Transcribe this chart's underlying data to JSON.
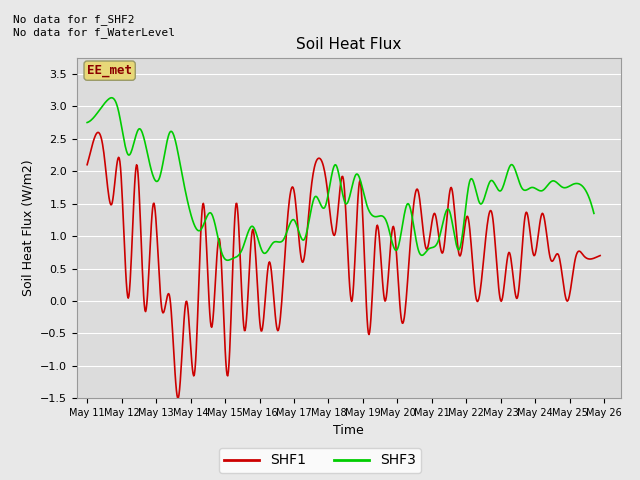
{
  "title": "Soil Heat Flux",
  "xlabel": "Time",
  "ylabel": "Soil Heat Flux (W/m2)",
  "ylim": [
    -1.5,
    3.75
  ],
  "yticks": [
    -1.5,
    -1.0,
    -0.5,
    0.0,
    0.5,
    1.0,
    1.5,
    2.0,
    2.5,
    3.0,
    3.5
  ],
  "bg_color": "#dcdcdc",
  "fig_color": "#e8e8e8",
  "grid_color": "white",
  "text_top_left": "No data for f_SHF2\nNo data for f_WaterLevel",
  "annotation_box": "EE_met",
  "annotation_box_color": "#e8d878",
  "annotation_text_color": "#8b0000",
  "shf1_color": "#cc0000",
  "shf3_color": "#00cc00",
  "line_width": 1.2,
  "xtick_labels": [
    "May 11",
    "May 12",
    "May 13",
    "May 14",
    "May 15",
    "May 16",
    "May 17",
    "May 18",
    "May 19",
    "May 20",
    "May 21",
    "May 22",
    "May 23",
    "May 24",
    "May 25",
    "May 26"
  ],
  "shf1_x": [
    0,
    0.4,
    0.8,
    1.2,
    1.6,
    2.0,
    2.4,
    2.8,
    3.2,
    3.6,
    4.0,
    4.4,
    4.8,
    5.2,
    5.6,
    6.0,
    6.4,
    6.8,
    7.2,
    7.6,
    8.0,
    8.4,
    8.8,
    9.2,
    9.6,
    10.0,
    10.4,
    10.8,
    11.2,
    11.6,
    12.0,
    12.4,
    12.8,
    13.2,
    13.6,
    14.0,
    14.4,
    14.8,
    15.2,
    15.6,
    16.0,
    16.4,
    16.8,
    17.2,
    17.6,
    18.0,
    18.4,
    18.8,
    19.2,
    19.6,
    20.0,
    20.4,
    20.8,
    21.2,
    21.6,
    22.0,
    22.4,
    22.8,
    23.2,
    23.6,
    24.0,
    24.4,
    24.8
  ],
  "shf1_y": [
    2.1,
    2.55,
    2.3,
    1.5,
    2.1,
    0.05,
    2.1,
    -0.15,
    1.5,
    -0.1,
    0.05,
    -1.5,
    0.0,
    -1.1,
    1.5,
    -0.4,
    0.95,
    -1.15,
    1.5,
    -0.45,
    1.1,
    -0.45,
    0.6,
    -0.45,
    0.9,
    1.7,
    0.6,
    1.65,
    2.2,
    1.75,
    1.05,
    1.85,
    0.0,
    1.85,
    -0.5,
    1.15,
    0.0,
    1.15,
    -0.3,
    0.8,
    1.7,
    0.8,
    1.35,
    0.75,
    1.75,
    0.7,
    1.3,
    0.05,
    0.75,
    1.3,
    0.0,
    0.75,
    0.05,
    1.35,
    0.7,
    1.35,
    0.65,
    0.7,
    0.0,
    0.65,
    0.7,
    0.65,
    0.7
  ],
  "shf3_x": [
    0,
    0.5,
    1.0,
    1.5,
    2.0,
    2.5,
    3.0,
    3.5,
    4.0,
    4.5,
    5.0,
    5.5,
    6.0,
    6.5,
    7.0,
    7.5,
    8.0,
    8.5,
    9.0,
    9.5,
    10.0,
    10.5,
    11.0,
    11.5,
    12.0,
    12.5,
    13.0,
    13.5,
    14.0,
    14.5,
    15.0,
    15.5,
    16.0,
    16.5,
    17.0,
    17.5,
    18.0,
    18.5,
    19.0,
    19.5,
    20.0,
    20.5,
    21.0,
    21.5,
    22.0,
    22.5,
    23.0,
    23.5,
    24.0,
    24.5
  ],
  "shf3_y": [
    2.75,
    2.9,
    3.1,
    2.95,
    2.25,
    2.65,
    2.15,
    1.9,
    2.6,
    2.1,
    1.35,
    1.1,
    1.35,
    0.75,
    0.65,
    0.8,
    1.15,
    0.75,
    0.9,
    0.95,
    1.25,
    0.95,
    1.6,
    1.45,
    2.1,
    1.5,
    1.95,
    1.5,
    1.3,
    1.2,
    0.8,
    1.5,
    0.8,
    0.8,
    0.95,
    1.4,
    0.8,
    1.85,
    1.5,
    1.85,
    1.7,
    2.1,
    1.75,
    1.75,
    1.7,
    1.85,
    1.75,
    1.8,
    1.75,
    1.35
  ]
}
